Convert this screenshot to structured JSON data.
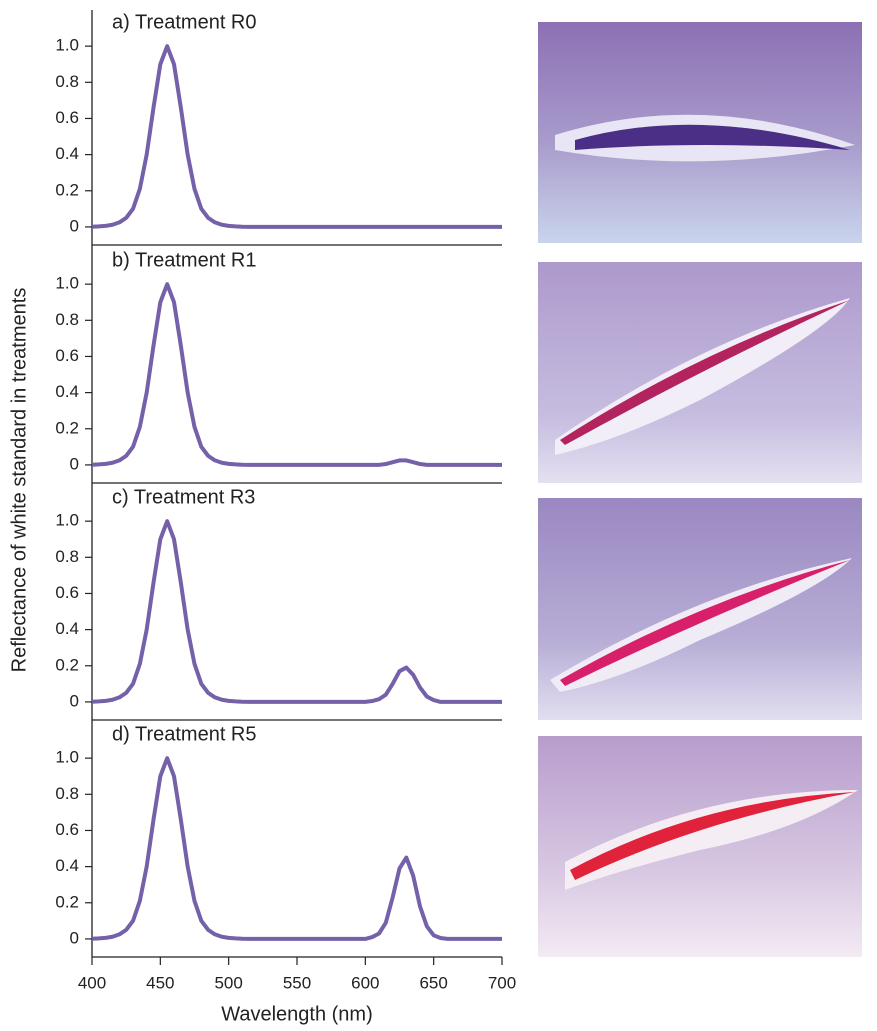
{
  "ylabel": "Reflectance of white standard in treatments",
  "chart_data": [
    {
      "type": "line",
      "title": "a) Treatment R0",
      "color": "#7461a9",
      "x": [
        400,
        405,
        410,
        415,
        420,
        425,
        430,
        435,
        440,
        445,
        450,
        455,
        460,
        465,
        470,
        475,
        480,
        485,
        490,
        495,
        500,
        505,
        510,
        515,
        520,
        525,
        530,
        535,
        540,
        545,
        550,
        555,
        560,
        565,
        570,
        575,
        580,
        585,
        590,
        595,
        600,
        605,
        610,
        615,
        620,
        625,
        630,
        635,
        640,
        645,
        650,
        655,
        660,
        665,
        670,
        675,
        680,
        685,
        690,
        695,
        700
      ],
      "values": [
        0.001,
        0.003,
        0.006,
        0.012,
        0.025,
        0.05,
        0.1,
        0.21,
        0.4,
        0.66,
        0.9,
        1.0,
        0.9,
        0.66,
        0.4,
        0.21,
        0.1,
        0.05,
        0.025,
        0.012,
        0.006,
        0.003,
        0.001,
        0,
        0,
        0,
        0,
        0,
        0,
        0,
        0,
        0,
        0,
        0,
        0,
        0,
        0,
        0,
        0,
        0,
        0,
        0,
        0,
        0,
        0,
        0,
        0,
        0,
        0,
        0,
        0,
        0,
        0,
        0,
        0,
        0,
        0,
        0,
        0,
        0,
        0
      ],
      "xlim": [
        400,
        700
      ],
      "ylim": [
        -0.1,
        1.2
      ],
      "yticks": [
        0,
        0.2,
        0.4,
        0.6,
        0.8,
        {
          "value": 1,
          "label": "1.0"
        }
      ]
    },
    {
      "type": "line",
      "title": "b) Treatment R1",
      "color": "#7461a9",
      "x": [
        400,
        405,
        410,
        415,
        420,
        425,
        430,
        435,
        440,
        445,
        450,
        455,
        460,
        465,
        470,
        475,
        480,
        485,
        490,
        495,
        500,
        505,
        510,
        515,
        520,
        525,
        530,
        535,
        540,
        545,
        550,
        555,
        560,
        565,
        570,
        575,
        580,
        585,
        590,
        595,
        600,
        605,
        610,
        615,
        620,
        625,
        630,
        635,
        640,
        645,
        650,
        655,
        660,
        665,
        670,
        675,
        680,
        685,
        690,
        695,
        700
      ],
      "values": [
        0.001,
        0.003,
        0.006,
        0.012,
        0.025,
        0.05,
        0.1,
        0.21,
        0.4,
        0.66,
        0.9,
        1.0,
        0.9,
        0.66,
        0.4,
        0.21,
        0.1,
        0.05,
        0.025,
        0.012,
        0.006,
        0.003,
        0.001,
        0,
        0,
        0,
        0,
        0,
        0,
        0,
        0,
        0,
        0,
        0,
        0,
        0,
        0,
        0,
        0,
        0,
        0,
        0,
        0,
        0.005,
        0.015,
        0.025,
        0.025,
        0.015,
        0.005,
        0,
        0,
        0,
        0,
        0,
        0,
        0,
        0,
        0,
        0,
        0,
        0
      ],
      "xlim": [
        400,
        700
      ],
      "ylim": [
        -0.1,
        1.2
      ],
      "yticks": [
        0,
        0.2,
        0.4,
        0.6,
        0.8,
        {
          "value": 1,
          "label": "1.0"
        }
      ]
    },
    {
      "type": "line",
      "title": "c) Treatment R3",
      "color": "#7461a9",
      "x": [
        400,
        405,
        410,
        415,
        420,
        425,
        430,
        435,
        440,
        445,
        450,
        455,
        460,
        465,
        470,
        475,
        480,
        485,
        490,
        495,
        500,
        505,
        510,
        515,
        520,
        525,
        530,
        535,
        540,
        545,
        550,
        555,
        560,
        565,
        570,
        575,
        580,
        585,
        590,
        595,
        600,
        605,
        610,
        615,
        620,
        625,
        630,
        635,
        640,
        645,
        650,
        655,
        660,
        665,
        670,
        675,
        680,
        685,
        690,
        695,
        700
      ],
      "values": [
        0.001,
        0.003,
        0.006,
        0.012,
        0.025,
        0.05,
        0.1,
        0.21,
        0.4,
        0.66,
        0.9,
        1.0,
        0.9,
        0.66,
        0.4,
        0.21,
        0.1,
        0.05,
        0.025,
        0.012,
        0.006,
        0.003,
        0.001,
        0,
        0,
        0,
        0,
        0,
        0,
        0,
        0,
        0,
        0,
        0,
        0,
        0,
        0,
        0,
        0,
        0,
        0,
        0.005,
        0.015,
        0.04,
        0.1,
        0.17,
        0.19,
        0.15,
        0.08,
        0.03,
        0.01,
        0,
        0,
        0,
        0,
        0,
        0,
        0,
        0,
        0,
        0
      ],
      "xlim": [
        400,
        700
      ],
      "ylim": [
        -0.1,
        1.2
      ],
      "yticks": [
        0,
        0.2,
        0.4,
        0.6,
        0.8,
        {
          "value": 1,
          "label": "1.0"
        }
      ]
    },
    {
      "type": "line",
      "title": "d) Treatment R5",
      "color": "#7461a9",
      "x": [
        400,
        405,
        410,
        415,
        420,
        425,
        430,
        435,
        440,
        445,
        450,
        455,
        460,
        465,
        470,
        475,
        480,
        485,
        490,
        495,
        500,
        505,
        510,
        515,
        520,
        525,
        530,
        535,
        540,
        545,
        550,
        555,
        560,
        565,
        570,
        575,
        580,
        585,
        590,
        595,
        600,
        605,
        610,
        615,
        620,
        625,
        630,
        635,
        640,
        645,
        650,
        655,
        660,
        665,
        670,
        675,
        680,
        685,
        690,
        695,
        700
      ],
      "values": [
        0.001,
        0.003,
        0.006,
        0.012,
        0.025,
        0.05,
        0.1,
        0.21,
        0.4,
        0.66,
        0.9,
        1.0,
        0.9,
        0.66,
        0.4,
        0.21,
        0.1,
        0.05,
        0.025,
        0.012,
        0.006,
        0.003,
        0.001,
        0,
        0,
        0,
        0,
        0,
        0,
        0,
        0,
        0,
        0,
        0,
        0,
        0,
        0,
        0,
        0,
        0,
        0,
        0.01,
        0.03,
        0.09,
        0.23,
        0.39,
        0.45,
        0.35,
        0.18,
        0.07,
        0.02,
        0.005,
        0,
        0,
        0,
        0,
        0,
        0,
        0,
        0,
        0
      ],
      "xlim": [
        400,
        700
      ],
      "ylim": [
        -0.1,
        1.2
      ],
      "yticks": [
        0,
        0.2,
        0.4,
        0.6,
        0.8,
        {
          "value": 1,
          "label": "1.0"
        }
      ],
      "xticks": [
        400,
        450,
        500,
        550,
        600,
        650,
        700
      ],
      "xlabel": "Wavelength (nm)"
    }
  ]
}
